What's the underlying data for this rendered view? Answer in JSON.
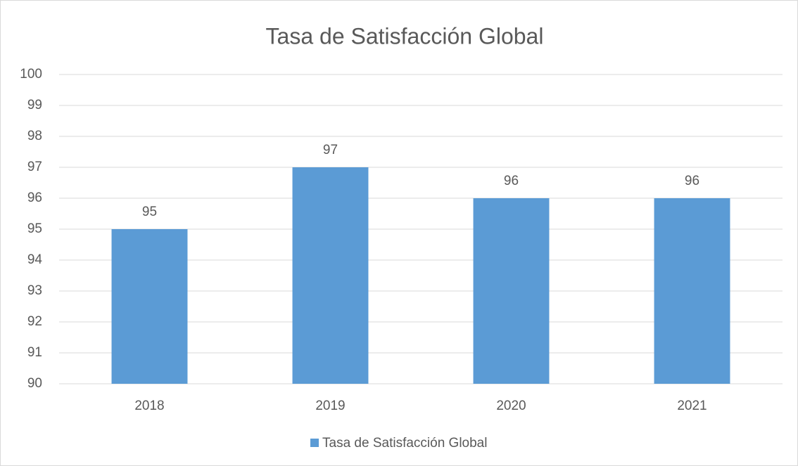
{
  "chart_data": {
    "type": "bar",
    "title": "Tasa de Satisfacción Global",
    "categories": [
      "2018",
      "2019",
      "2020",
      "2021"
    ],
    "series": [
      {
        "name": "Tasa de Satisfacción Global",
        "color": "#5b9bd5",
        "values": [
          95,
          97,
          96,
          96
        ]
      }
    ],
    "ylim": [
      90,
      100
    ],
    "yticks": [
      90,
      91,
      92,
      93,
      94,
      95,
      96,
      97,
      98,
      99,
      100
    ],
    "grid": true,
    "legend": "bottom",
    "data_labels": true
  }
}
